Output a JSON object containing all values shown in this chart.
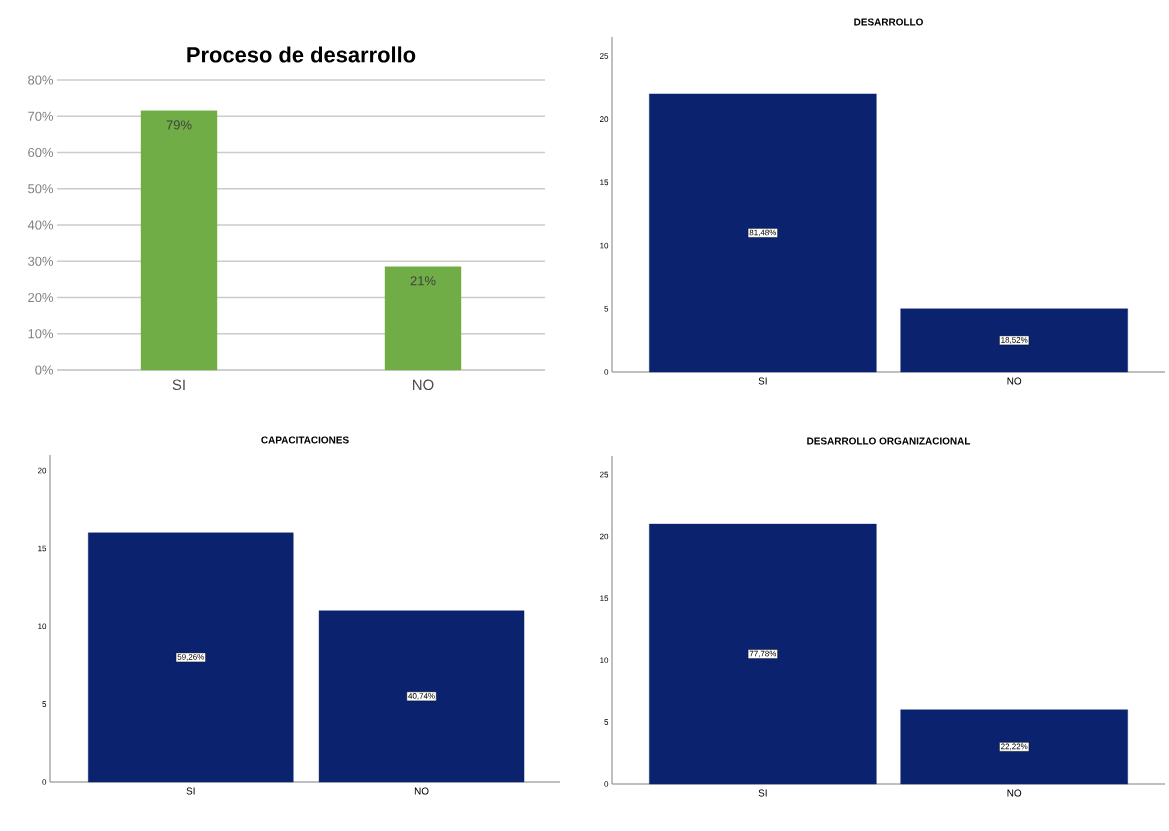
{
  "chart_data": [
    {
      "type": "bar",
      "title": "Proceso de desarrollo",
      "categories": [
        "SI",
        "NO"
      ],
      "values": [
        71.5,
        28.5
      ],
      "color": "#70ad47",
      "ylim": [
        0,
        80
      ],
      "yticks": [
        {
          "value": 0,
          "label": "0%"
        },
        {
          "value": 10,
          "label": "10%"
        },
        {
          "value": 20,
          "label": "20%"
        },
        {
          "value": 30,
          "label": "30%"
        },
        {
          "value": 40,
          "label": "40%"
        },
        {
          "value": 50,
          "label": "50%"
        },
        {
          "value": 60,
          "label": "60%"
        },
        {
          "value": 70,
          "label": "70%"
        },
        {
          "value": 80,
          "label": "80%"
        }
      ],
      "grid": "y",
      "annotations": [
        {
          "text": "79%",
          "x": "SI",
          "y": 71.5
        },
        {
          "text": "21%",
          "x": "NO",
          "y": 28.5
        }
      ]
    },
    {
      "type": "bar",
      "title": "DESARROLLO",
      "categories": [
        "SI",
        "NO"
      ],
      "values": [
        22,
        5
      ],
      "color": "#0b236e",
      "ylim": [
        0,
        26.5
      ],
      "yticks": [
        0,
        5,
        10,
        15,
        20,
        25
      ],
      "annotations": [
        {
          "text": "81,48%",
          "x": "SI",
          "y": 11
        },
        {
          "text": "18,52%",
          "x": "NO",
          "y": 2.5
        }
      ]
    },
    {
      "type": "bar",
      "title": "CAPACITACIONES",
      "categories": [
        "SI",
        "NO"
      ],
      "values": [
        16,
        11
      ],
      "color": "#0b236e",
      "ylim": [
        0,
        21
      ],
      "yticks": [
        0,
        5,
        10,
        15,
        20
      ],
      "annotations": [
        {
          "text": "59,26%",
          "x": "SI",
          "y": 8
        },
        {
          "text": "40,74%",
          "x": "NO",
          "y": 5.5
        }
      ]
    },
    {
      "type": "bar",
      "title": "DESARROLLO ORGANIZACIONAL",
      "categories": [
        "SI",
        "NO"
      ],
      "values": [
        21,
        6
      ],
      "color": "#0b236e",
      "ylim": [
        0,
        26.5
      ],
      "yticks": [
        0,
        5,
        10,
        15,
        20,
        25
      ],
      "annotations": [
        {
          "text": "77,78%",
          "x": "SI",
          "y": 10.5
        },
        {
          "text": "22,22%",
          "x": "NO",
          "y": 3
        }
      ]
    }
  ]
}
